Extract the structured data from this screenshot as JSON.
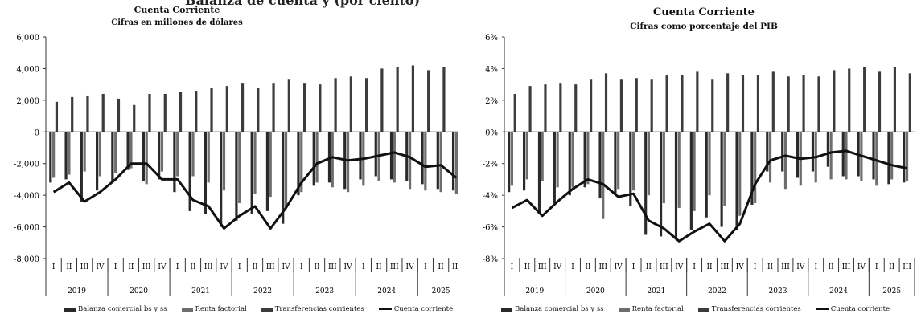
{
  "header": {
    "cut_title": "Balanza de cuenta y (por ciento)"
  },
  "legend": {
    "items": [
      {
        "label": "Balanza comercial bs y ss",
        "color": "#2a2a2a",
        "kind": "bar"
      },
      {
        "label": "Renta factorial",
        "color": "#6e6e6e",
        "kind": "bar"
      },
      {
        "label": "Transferencias corrientes",
        "color": "#3c3c3c",
        "kind": "bar"
      },
      {
        "label": "Cuenta corriente",
        "color": "#111111",
        "kind": "line"
      }
    ]
  },
  "chart_data": [
    {
      "type": "bar",
      "title": "Cuenta Corriente",
      "subtitle": "Cifras en millones de dólares",
      "ylim": [
        -8000,
        6000
      ],
      "yticks": [
        -8000,
        -6000,
        -4000,
        -2000,
        0,
        2000,
        4000,
        6000
      ],
      "ytick_labels": [
        "-8,000",
        "-6,000",
        "-4,000",
        "-2,000",
        "0",
        "2,000",
        "4,000",
        "6,000"
      ],
      "years": [
        "2019",
        "2020",
        "2021",
        "2022",
        "2023",
        "2024",
        "2025"
      ],
      "categories": [
        "I",
        "II",
        "III",
        "IV",
        "I",
        "II",
        "III",
        "IV",
        "I",
        "II",
        "III",
        "IV",
        "I",
        "II",
        "III",
        "IV",
        "I",
        "II",
        "III",
        "IV",
        "I",
        "II",
        "III",
        "IV",
        "I",
        "II",
        "III"
      ],
      "series": [
        {
          "name": "Balanza comercial bs y ss",
          "type": "bar",
          "values": [
            -3200,
            -3000,
            -4400,
            -3700,
            -3100,
            -2400,
            -3100,
            -3000,
            -3800,
            -5000,
            -5200,
            -6000,
            -5600,
            -5200,
            -5000,
            -5800,
            -4000,
            -3400,
            -3200,
            -3600,
            -3000,
            -2800,
            -3000,
            -3100,
            -3300,
            -3600,
            -3700
          ]
        },
        {
          "name": "Renta factorial",
          "type": "bar",
          "values": [
            -2900,
            -2700,
            -2500,
            -2800,
            -2600,
            -2300,
            -3300,
            -2500,
            -2800,
            -2800,
            -3200,
            -3700,
            -4500,
            -3900,
            -4100,
            -4800,
            -3800,
            -3200,
            -3500,
            -3800,
            -3400,
            -3100,
            -3200,
            -3600,
            -3700,
            -3800,
            -3900
          ]
        },
        {
          "name": "Transferencias corrientes",
          "type": "bar",
          "values": [
            1900,
            2200,
            2300,
            2400,
            2100,
            1700,
            2400,
            2400,
            2500,
            2600,
            2800,
            2900,
            3100,
            2800,
            3100,
            3300,
            3100,
            3000,
            3400,
            3500,
            3400,
            4000,
            4100,
            4200,
            3900,
            4100,
            4300
          ]
        },
        {
          "name": "Cuenta corriente",
          "type": "line",
          "values": [
            -3800,
            -3200,
            -4400,
            -3800,
            -3000,
            -2000,
            -2000,
            -3000,
            -3000,
            -4300,
            -4700,
            -6100,
            -5300,
            -4700,
            -6100,
            -4800,
            -3200,
            -2000,
            -1600,
            -1800,
            -1700,
            -1500,
            -1300,
            -1600,
            -2200,
            -2100,
            -2900
          ]
        }
      ]
    },
    {
      "type": "bar",
      "title": "Cuenta Corriente",
      "subtitle": "Cifras como porcentaje del PIB",
      "ylim": [
        -8,
        6
      ],
      "yticks": [
        -8,
        -6,
        -4,
        -2,
        0,
        2,
        4,
        6
      ],
      "ytick_labels": [
        "-8%",
        "-6%",
        "-4%",
        "-2%",
        "0%",
        "2%",
        "4%",
        "6%"
      ],
      "years": [
        "2019",
        "2020",
        "2021",
        "2022",
        "2023",
        "2024",
        "2025"
      ],
      "categories": [
        "I",
        "II",
        "III",
        "IV",
        "I",
        "II",
        "III",
        "IV",
        "I",
        "II",
        "III",
        "IV",
        "I",
        "II",
        "III",
        "IV",
        "I",
        "II",
        "III",
        "IV",
        "I",
        "II",
        "III",
        "IV",
        "I",
        "II",
        "III"
      ],
      "series": [
        {
          "name": "Balanza comercial bs y ss",
          "type": "bar",
          "values": [
            -3.8,
            -3.7,
            -5.2,
            -4.5,
            -4.0,
            -3.5,
            -4.2,
            -4.0,
            -4.7,
            -6.5,
            -6.6,
            -6.8,
            -6.2,
            -5.4,
            -6.0,
            -6.2,
            -4.6,
            -2.5,
            -2.5,
            -2.9,
            -2.5,
            -2.2,
            -2.8,
            -2.8,
            -3.0,
            -3.3,
            -3.2
          ]
        },
        {
          "name": "Renta factorial",
          "type": "bar",
          "values": [
            -3.4,
            -3.0,
            -3.1,
            -3.5,
            -3.5,
            -3.3,
            -5.5,
            -3.6,
            -3.7,
            -4.0,
            -4.5,
            -4.8,
            -5.0,
            -4.0,
            -4.7,
            -5.3,
            -4.5,
            -3.2,
            -3.6,
            -3.4,
            -3.2,
            -3.0,
            -3.0,
            -3.1,
            -3.4,
            -3.0,
            -3.1
          ]
        },
        {
          "name": "Transferencias corrientes",
          "type": "bar",
          "values": [
            2.4,
            2.9,
            3.0,
            3.1,
            3.0,
            3.3,
            3.7,
            3.3,
            3.4,
            3.3,
            3.6,
            3.6,
            3.8,
            3.3,
            3.7,
            3.6,
            3.6,
            3.8,
            3.5,
            3.6,
            3.5,
            3.9,
            4.0,
            4.1,
            3.8,
            4.1,
            3.7
          ]
        },
        {
          "name": "Cuenta corriente",
          "type": "line",
          "values": [
            -4.8,
            -4.3,
            -5.3,
            -4.4,
            -3.6,
            -3.0,
            -3.3,
            -4.1,
            -3.9,
            -5.6,
            -6.1,
            -6.9,
            -6.3,
            -5.8,
            -6.9,
            -5.8,
            -3.3,
            -1.8,
            -1.5,
            -1.7,
            -1.6,
            -1.3,
            -1.2,
            -1.5,
            -1.8,
            -2.1,
            -2.3
          ]
        }
      ]
    }
  ]
}
